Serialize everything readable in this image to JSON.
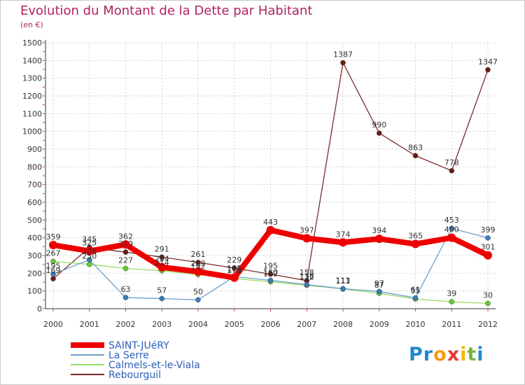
{
  "title": "Evolution du Montant de la Dette par Habitant",
  "unit": "(en €)",
  "logo": {
    "text": "Proxiti",
    "letters": [
      "P",
      "r",
      "o",
      "x",
      "i",
      "t",
      "i"
    ],
    "colors": [
      "#1e88d2",
      "#1e88d2",
      "#f39c12",
      "#e53935",
      "#f5b800",
      "#7cb342",
      "#1e88d2"
    ]
  },
  "chart_data": {
    "type": "line",
    "title": "Evolution du Montant de la Dette par Habitant",
    "ylabel": "(en €)",
    "xlabel": "",
    "ylim": [
      0,
      1500
    ],
    "ytick_step": 100,
    "yticks": [
      "0",
      "100",
      "200",
      "300",
      "400",
      "500",
      "600",
      "700",
      "800",
      "900",
      "1000",
      "1100",
      "1200",
      "1300",
      "1400",
      "1500"
    ],
    "categories": [
      "2000",
      "2001",
      "2002",
      "2003",
      "2004",
      "2005",
      "2006",
      "2007",
      "2008",
      "2009",
      "2010",
      "2011",
      "2012"
    ],
    "series": [
      {
        "name": "Rebourguil",
        "color": "#7b2b2b",
        "marker": "#6b1a1a",
        "values": [
          169,
          345,
          319,
          291,
          261,
          229,
          195,
          158,
          1387,
          990,
          863,
          778,
          1347
        ],
        "labels": [
          "169",
          "345",
          "319",
          "291",
          "261",
          "229",
          "195",
          "158",
          "1387",
          "990",
          "863",
          "778",
          "1347"
        ]
      },
      {
        "name": "Calmels-et-le-Viala",
        "color": "#99dd66",
        "marker": "#66cc33",
        "values": [
          267,
          250,
          227,
          214,
          192,
          170,
          152,
          132,
          111,
          87,
          55,
          39,
          30
        ],
        "labels": [
          "267",
          "250",
          "227",
          "214",
          "192",
          "170",
          "152",
          "132",
          "111",
          "87",
          "55",
          "39",
          "30"
        ]
      },
      {
        "name": "La Serre",
        "color": "#6aa0d0",
        "marker": "#3a7dc0",
        "values": [
          195,
          276,
          63,
          57,
          50,
          181,
          160,
          136,
          113,
          97,
          61,
          453,
          399
        ],
        "labels": [
          "195",
          "276",
          "63",
          "57",
          "50",
          "181",
          "160",
          "136",
          "113",
          "97",
          "61",
          "453",
          "399"
        ]
      },
      {
        "name": "SAINT-JUéRY",
        "color": "#ee0000",
        "marker": "#ee0000",
        "values": [
          359,
          325,
          362,
          234,
          209,
          175,
          443,
          397,
          374,
          394,
          365,
          400,
          301
        ],
        "labels": [
          "359",
          "325",
          "362",
          "234",
          "209",
          "175",
          "443",
          "397",
          "374",
          "394",
          "365",
          "400",
          "301"
        ]
      }
    ]
  },
  "legend": [
    {
      "name": "SAINT-JUéRY",
      "color": "#ee0000"
    },
    {
      "name": "La Serre",
      "color": "#6aa0d0"
    },
    {
      "name": "Calmels-et-le-Viala",
      "color": "#99dd66"
    },
    {
      "name": "Rebourguil",
      "color": "#7b2b2b"
    }
  ]
}
